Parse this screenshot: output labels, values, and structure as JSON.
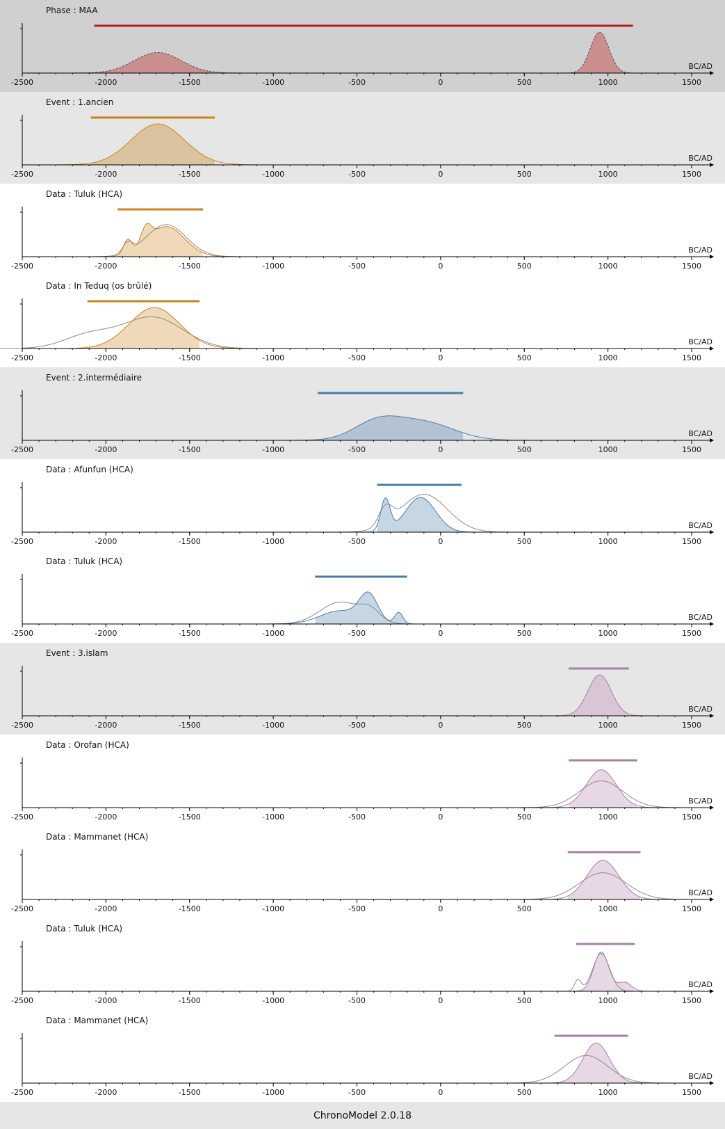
{
  "footer": {
    "text": "ChronoModel 2.0.18"
  },
  "chart_data": {
    "type": "area",
    "unit_label": "BC/AD",
    "xlim": [
      -2500,
      1600
    ],
    "xticks": [
      -2500,
      -2000,
      -1500,
      -1000,
      -500,
      0,
      500,
      1000,
      1500
    ],
    "panels": [
      {
        "title": "Phase : MAA",
        "kind": "phase",
        "bg": "#d0d0d0",
        "color": "#b01e1e",
        "fill": "#c98f8f",
        "hpd": [
          -2070,
          1150
        ],
        "components": [
          {
            "mu": -1690,
            "sigma": 140,
            "h": 0.46,
            "hpd": [
              -2070,
              -1340
            ]
          },
          {
            "mu": 950,
            "sigma": 55,
            "h": 0.92,
            "hpd": [
              760,
              1130
            ]
          }
        ]
      },
      {
        "title": "Event : 1.ancien",
        "kind": "event",
        "bg": "#e6e6e6",
        "color": "#c8841c",
        "fill": "#dcc39f",
        "hpd": [
          -2090,
          -1350
        ],
        "components": [
          {
            "mu": -1690,
            "sigma": 160,
            "h": 0.92,
            "hpd": [
              -2090,
              -1350
            ]
          }
        ]
      },
      {
        "title": "Data : Tuluk (HCA)",
        "kind": "data",
        "bg": "#ffffff",
        "color": "#c8841c",
        "fill": "#efd9b8",
        "hpd": [
          -1930,
          -1420
        ],
        "components": [
          {
            "mu": -1870,
            "sigma": 25,
            "h": 0.35
          },
          {
            "mu": -1760,
            "sigma": 30,
            "h": 0.4
          },
          {
            "mu": -1640,
            "sigma": 110,
            "h": 0.75
          }
        ],
        "calib": [
          {
            "mu": -1640,
            "sigma": 120,
            "h": 0.8
          },
          {
            "mu": -1870,
            "sigma": 30,
            "h": 0.25
          }
        ]
      },
      {
        "title": "Data : In Teduq (os brûlé)",
        "kind": "data",
        "bg": "#ffffff",
        "color": "#c8841c",
        "fill": "#efd9b8",
        "hpd": [
          -2110,
          -1440
        ],
        "components": [
          {
            "mu": -1710,
            "sigma": 150,
            "h": 0.92
          }
        ],
        "calib": [
          {
            "mu": -1720,
            "sigma": 180,
            "h": 0.7
          },
          {
            "mu": -2100,
            "sigma": 150,
            "h": 0.3
          }
        ]
      },
      {
        "title": "Event : 2.intermédiaire",
        "kind": "event",
        "bg": "#e6e6e6",
        "color": "#4a7ca8",
        "fill": "#b3c3d3",
        "hpd": [
          -735,
          135
        ],
        "components": [
          {
            "mu": -380,
            "sigma": 140,
            "h": 0.55
          },
          {
            "mu": -100,
            "sigma": 180,
            "h": 0.55
          }
        ]
      },
      {
        "title": "Data : Afunfun (HCA)",
        "kind": "data",
        "bg": "#ffffff",
        "color": "#4a7ca8",
        "fill": "#c7d6e3",
        "hpd": [
          -380,
          125
        ],
        "components": [
          {
            "mu": -330,
            "sigma": 28,
            "h": 0.72
          },
          {
            "mu": -120,
            "sigma": 90,
            "h": 0.78
          }
        ],
        "calib": [
          {
            "mu": -100,
            "sigma": 140,
            "h": 0.85
          },
          {
            "mu": -330,
            "sigma": 40,
            "h": 0.4
          }
        ]
      },
      {
        "title": "Data : Tuluk (HCA)",
        "kind": "data",
        "bg": "#ffffff",
        "color": "#4a7ca8",
        "fill": "#c7d6e3",
        "hpd": [
          -750,
          -200
        ],
        "components": [
          {
            "mu": -430,
            "sigma": 55,
            "h": 0.72
          },
          {
            "mu": -600,
            "sigma": 120,
            "h": 0.35
          },
          {
            "mu": -250,
            "sigma": 25,
            "h": 0.3
          }
        ],
        "calib": [
          {
            "mu": -600,
            "sigma": 120,
            "h": 0.58
          },
          {
            "mu": -420,
            "sigma": 60,
            "h": 0.3
          }
        ]
      },
      {
        "title": "Event : 3.islam",
        "kind": "event",
        "bg": "#e6e6e6",
        "color": "#a87fa8",
        "fill": "#d8c5d6",
        "hpd": [
          765,
          1125
        ],
        "components": [
          {
            "mu": 950,
            "sigma": 70,
            "h": 0.92
          }
        ]
      },
      {
        "title": "Data : Orofan (HCA)",
        "kind": "data",
        "bg": "#ffffff",
        "color": "#a87fa8",
        "fill": "#e8d8e6",
        "hpd": [
          765,
          1175
        ],
        "components": [
          {
            "mu": 960,
            "sigma": 90,
            "h": 0.85
          }
        ],
        "calib": [
          {
            "mu": 960,
            "sigma": 130,
            "h": 0.6
          }
        ]
      },
      {
        "title": "Data : Mammanet (HCA)",
        "kind": "data",
        "bg": "#ffffff",
        "color": "#a87fa8",
        "fill": "#e8d8e6",
        "hpd": [
          760,
          1195
        ],
        "components": [
          {
            "mu": 970,
            "sigma": 95,
            "h": 0.88
          }
        ],
        "calib": [
          {
            "mu": 970,
            "sigma": 140,
            "h": 0.6
          }
        ]
      },
      {
        "title": "Data : Tuluk (HCA)",
        "kind": "data",
        "bg": "#ffffff",
        "color": "#a87fa8",
        "fill": "#e8d8e6",
        "hpd": [
          810,
          1160
        ],
        "components": [
          {
            "mu": 960,
            "sigma": 45,
            "h": 0.88
          },
          {
            "mu": 1100,
            "sigma": 40,
            "h": 0.2
          }
        ],
        "calib": [
          {
            "mu": 960,
            "sigma": 50,
            "h": 0.85
          },
          {
            "mu": 820,
            "sigma": 20,
            "h": 0.25
          }
        ]
      },
      {
        "title": "Data : Mammanet (HCA)",
        "kind": "data",
        "bg": "#ffffff",
        "color": "#a87fa8",
        "fill": "#e8d8e6",
        "hpd": [
          680,
          1120
        ],
        "components": [
          {
            "mu": 930,
            "sigma": 80,
            "h": 0.9
          }
        ],
        "calib": [
          {
            "mu": 870,
            "sigma": 130,
            "h": 0.62
          }
        ]
      }
    ]
  }
}
